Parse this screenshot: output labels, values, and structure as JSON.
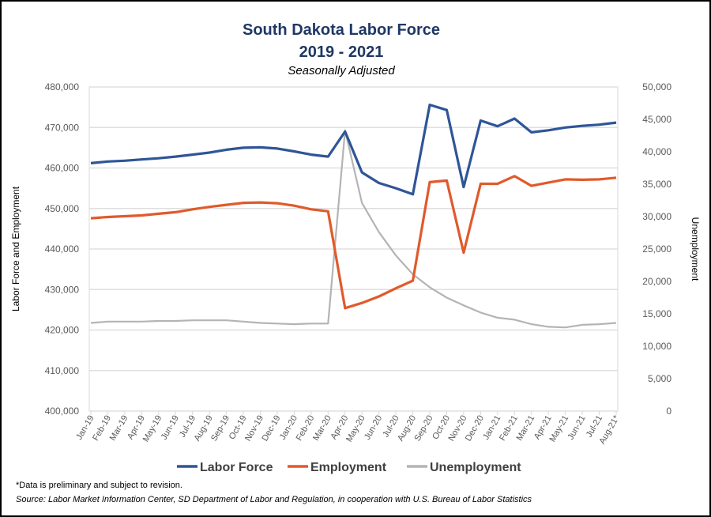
{
  "chart_data": {
    "type": "line",
    "title": "South Dakota Labor Force",
    "subtitle": "2019 - 2021",
    "subtitle2": "Seasonally Adjusted",
    "ylabel_left": "Labor  Force and Employment",
    "ylabel_right": "Unemployment",
    "ylim_left": [
      400000,
      480000
    ],
    "ylim_right": [
      0,
      50000
    ],
    "yticks_left": [
      "400,000",
      "410,000",
      "420,000",
      "430,000",
      "440,000",
      "450,000",
      "460,000",
      "470,000",
      "480,000"
    ],
    "yticks_right": [
      "0",
      "5,000",
      "10,000",
      "15,000",
      "20,000",
      "25,000",
      "30,000",
      "35,000",
      "40,000",
      "45,000",
      "50,000"
    ],
    "grid": true,
    "legend_position": "bottom",
    "categories": [
      "Jan-19",
      "Feb-19",
      "Mar-19",
      "Apr-19",
      "May-19",
      "Jun-19",
      "Jul-19",
      "Aug-19",
      "Sep-19",
      "Oct-19",
      "Nov-19",
      "Dec-19",
      "Jan-20",
      "Feb-20",
      "Mar-20",
      "Apr-20",
      "May-20",
      "Jun-20",
      "Jul-20",
      "Aug-20",
      "Sep-20",
      "Oct-20",
      "Nov-20",
      "Dec-20",
      "Jan-21",
      "Feb-21",
      "Mar-21",
      "Apr-21",
      "May-21",
      "Jun-21",
      "Jul-21",
      "Aug-21*"
    ],
    "series": [
      {
        "name": "Labor Force",
        "axis": "left",
        "color": "#2F5597",
        "values": [
          461200,
          461600,
          461800,
          462100,
          462400,
          462800,
          463300,
          463800,
          464500,
          465000,
          465100,
          464800,
          464100,
          463300,
          462800,
          469000,
          458900,
          456300,
          455000,
          453500,
          475600,
          474300,
          455300,
          471700,
          470300,
          472200,
          468800,
          469300,
          470000,
          470400,
          470700,
          471200
        ]
      },
      {
        "name": "Employment",
        "axis": "left",
        "color": "#E05A2B",
        "values": [
          447600,
          447900,
          448100,
          448300,
          448700,
          449100,
          449800,
          450400,
          450900,
          451400,
          451500,
          451300,
          450700,
          449800,
          449300,
          425400,
          426700,
          428300,
          430300,
          432200,
          456500,
          456900,
          439100,
          456100,
          456100,
          458000,
          455600,
          456400,
          457200,
          457100,
          457200,
          457600
        ]
      },
      {
        "name": "Unemployment",
        "axis": "right",
        "color": "#B4B4B4",
        "values": [
          13600,
          13800,
          13800,
          13800,
          13900,
          13900,
          14000,
          14000,
          14000,
          13800,
          13600,
          13500,
          13400,
          13500,
          13500,
          43300,
          32100,
          27600,
          24000,
          21100,
          19100,
          17500,
          16300,
          15200,
          14400,
          14100,
          13400,
          13000,
          12900,
          13300,
          13400,
          13600
        ]
      }
    ]
  },
  "footnote": "*Data is preliminary and subject to revision.",
  "source": "Source:  Labor Market Information  Center,  SD Department  of Labor and Regulation, in cooperation with  U.S.  Bureau of Labor Statistics"
}
